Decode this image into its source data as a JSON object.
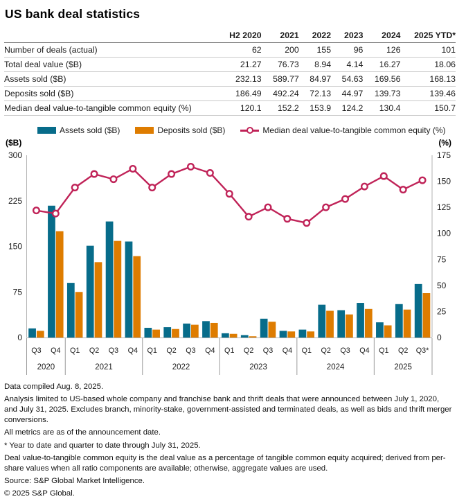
{
  "title": "US bank deal statistics",
  "table": {
    "columns": [
      "H2 2020",
      "2021",
      "2022",
      "2023",
      "2024",
      "2025 YTD*"
    ],
    "rows": [
      {
        "label": "Number of deals (actual)",
        "values": [
          "62",
          "200",
          "155",
          "96",
          "126",
          "101"
        ]
      },
      {
        "label": "Total deal value ($B)",
        "values": [
          "21.27",
          "76.73",
          "8.94",
          "4.14",
          "16.27",
          "18.06"
        ]
      },
      {
        "label": "Assets sold ($B)",
        "values": [
          "232.13",
          "589.77",
          "84.97",
          "54.63",
          "169.56",
          "168.13"
        ]
      },
      {
        "label": "Deposits sold ($B)",
        "values": [
          "186.49",
          "492.24",
          "72.13",
          "44.97",
          "139.73",
          "139.46"
        ]
      },
      {
        "label": "Median deal value-to-tangible common equity (%)",
        "values": [
          "120.1",
          "152.2",
          "153.9",
          "124.2",
          "130.4",
          "150.7"
        ]
      }
    ]
  },
  "legend": {
    "items": [
      {
        "kind": "swatch",
        "color": "#076C8A",
        "label": "Assets sold ($B)"
      },
      {
        "kind": "swatch",
        "color": "#DE7C00",
        "label": "Deposits sold ($B)"
      },
      {
        "kind": "line-marker",
        "color": "#C02358",
        "label": "Median deal value-to-tangible common equity (%)"
      }
    ]
  },
  "chart_data": {
    "type": "combo-bar-line-dual-axis",
    "categories": [
      "Q3",
      "Q4",
      "Q1",
      "Q2",
      "Q3",
      "Q4",
      "Q1",
      "Q2",
      "Q3",
      "Q4",
      "Q1",
      "Q2",
      "Q3",
      "Q4",
      "Q1",
      "Q2",
      "Q3",
      "Q4",
      "Q1",
      "Q2",
      "Q3*"
    ],
    "year_groups": [
      {
        "label": "2020",
        "count": 2
      },
      {
        "label": "2021",
        "count": 4
      },
      {
        "label": "2022",
        "count": 4
      },
      {
        "label": "2023",
        "count": 4
      },
      {
        "label": "2024",
        "count": 4
      },
      {
        "label": "2025",
        "count": 3
      }
    ],
    "left_axis": {
      "unit": "($B)",
      "ticks": [
        300,
        225,
        150,
        75,
        0
      ],
      "max": 300
    },
    "right_axis": {
      "unit": "(%)",
      "ticks": [
        175,
        150,
        125,
        100,
        75,
        50,
        25,
        0
      ],
      "max": 175
    },
    "series": [
      {
        "name": "Assets sold ($B)",
        "type": "bar",
        "axis": "left",
        "color": "#076C8A",
        "values": [
          15,
          217,
          90,
          151,
          191,
          158,
          16,
          17,
          23,
          27,
          7,
          4,
          31,
          11,
          13,
          54,
          45,
          57,
          25,
          55,
          88
        ]
      },
      {
        "name": "Deposits sold ($B)",
        "type": "bar",
        "axis": "left",
        "color": "#DE7C00",
        "values": [
          11,
          175,
          75,
          124,
          159,
          134,
          13,
          14,
          21,
          24,
          6,
          2,
          26,
          10,
          10,
          44,
          38,
          47,
          20,
          46,
          73
        ]
      },
      {
        "name": "Median deal value-to-tangible common equity (%)",
        "type": "line",
        "axis": "right",
        "color": "#C02358",
        "values": [
          122,
          119,
          144,
          157,
          152,
          162,
          144,
          157,
          164,
          158,
          138,
          116,
          125,
          114,
          110,
          125,
          133,
          145,
          155,
          142,
          151
        ]
      }
    ],
    "grid": false,
    "legend_position": "top"
  },
  "footnotes": [
    "Data compiled Aug. 8, 2025.",
    "Analysis limited to US-based whole company and franchise bank and thrift deals that were announced between July 1, 2020, and July 31, 2025. Excludes branch, minority-stake, government-assisted and terminated deals, as well as bids and thrift merger conversions.",
    "All metrics are as of the announcement date.",
    "* Year to date and quarter to date through July 31, 2025.",
    "Deal value-to-tangible common equity is the deal value as a percentage of tangible common equity acquired; derived from per-share values when all ratio components are available; otherwise, aggregate values are used.",
    "Source: S&P Global Market Intelligence.",
    "© 2025 S&P Global."
  ]
}
